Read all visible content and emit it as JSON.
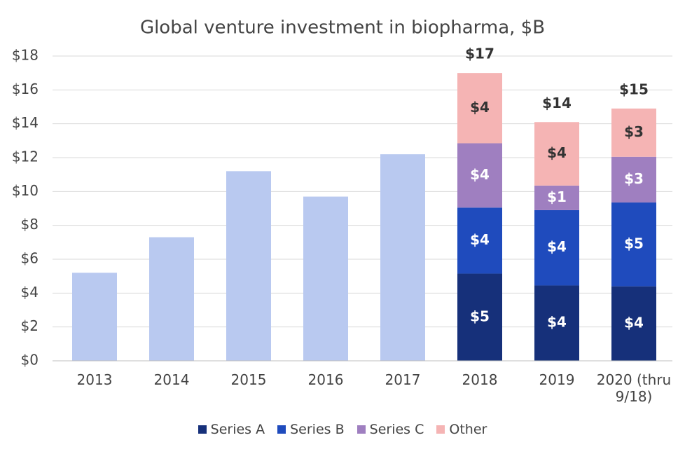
{
  "chart_data": {
    "type": "stacked_bar",
    "title": "Global venture investment in biopharma, $B",
    "categories": [
      "2013",
      "2014",
      "2015",
      "2016",
      "2017",
      "2018",
      "2019",
      "2020 (thru 9/18)"
    ],
    "series": [
      {
        "color": "#b9c9f0",
        "values": [
          5.2,
          7.3,
          11.2,
          9.7,
          12.2,
          null,
          null,
          null
        ]
      },
      {
        "name": "Series A",
        "color": "#16307a",
        "label_color": "#ffffff",
        "values": [
          null,
          null,
          null,
          null,
          null,
          5.15,
          4.45,
          4.4
        ],
        "value_labels": [
          null,
          null,
          null,
          null,
          null,
          "$5",
          "$4",
          "$4"
        ]
      },
      {
        "name": "Series B",
        "color": "#1f4bbd",
        "label_color": "#ffffff",
        "values": [
          null,
          null,
          null,
          null,
          null,
          3.9,
          4.45,
          4.95
        ],
        "value_labels": [
          null,
          null,
          null,
          null,
          null,
          "$4",
          "$4",
          "$5"
        ]
      },
      {
        "name": "Series C",
        "color": "#9f7fc0",
        "label_color": "#ffffff",
        "values": [
          null,
          null,
          null,
          null,
          null,
          3.8,
          1.45,
          2.7
        ],
        "value_labels": [
          null,
          null,
          null,
          null,
          null,
          "$4",
          "$1",
          "$3"
        ]
      },
      {
        "name": "Other",
        "color": "#f5b4b4",
        "label_color": "#333333",
        "values": [
          null,
          null,
          null,
          null,
          null,
          4.15,
          3.75,
          2.85
        ],
        "value_labels": [
          null,
          null,
          null,
          null,
          null,
          "$4",
          "$4",
          "$3"
        ]
      }
    ],
    "totals": [
      null,
      null,
      null,
      null,
      null,
      17,
      14.1,
      14.9
    ],
    "total_labels": [
      null,
      null,
      null,
      null,
      null,
      "$17",
      "$14",
      "$15"
    ],
    "ylim": [
      0,
      18
    ],
    "yticks": [
      {
        "value": 0,
        "label": "$0"
      },
      {
        "value": 2,
        "label": "$2"
      },
      {
        "value": 4,
        "label": "$4"
      },
      {
        "value": 6,
        "label": "$6"
      },
      {
        "value": 8,
        "label": "$8"
      },
      {
        "value": 10,
        "label": "$10"
      },
      {
        "value": 12,
        "label": "$12"
      },
      {
        "value": 14,
        "label": "$14"
      },
      {
        "value": 16,
        "label": "$16"
      },
      {
        "value": 18,
        "label": "$18"
      }
    ],
    "grid": true
  }
}
